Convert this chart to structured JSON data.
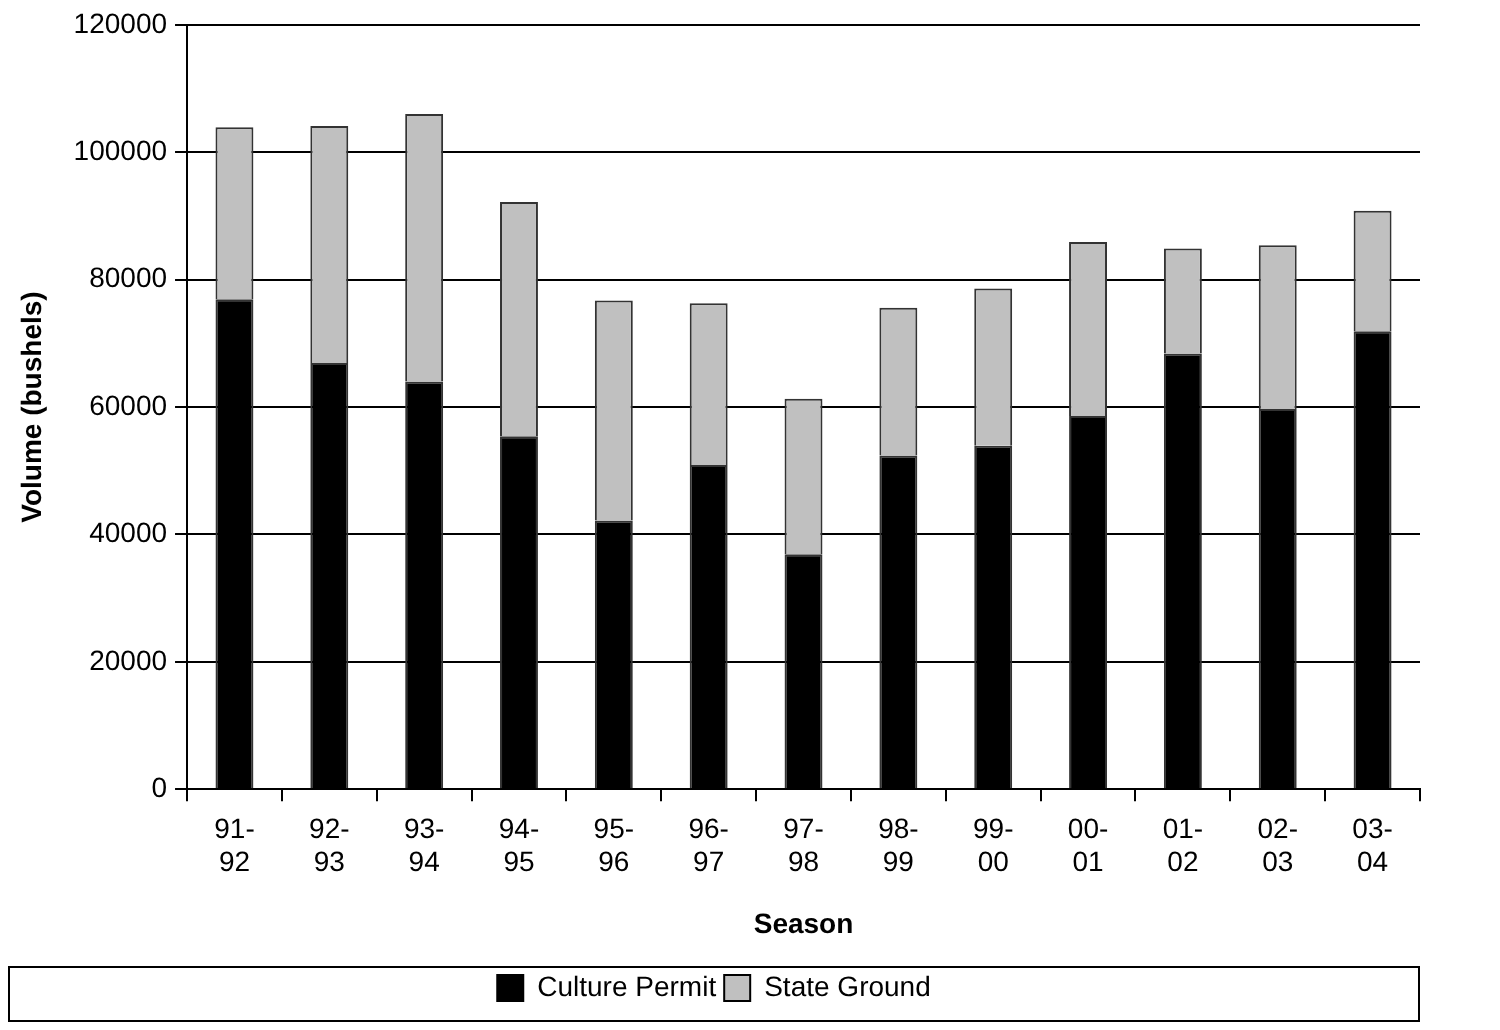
{
  "chart_data": {
    "type": "bar",
    "stacked": true,
    "xlabel": "Season",
    "ylabel": "Volume (bushels)",
    "categories": [
      "91-92",
      "92-93",
      "93-94",
      "94-95",
      "95-96",
      "96-97",
      "97-98",
      "98-99",
      "99-00",
      "00-01",
      "01-02",
      "02-03",
      "03-04"
    ],
    "series": [
      {
        "name": "Culture Permit",
        "color": "#000000",
        "values": [
          76900,
          66900,
          64000,
          55400,
          42200,
          50900,
          36900,
          52400,
          53900,
          58600,
          68400,
          59700,
          71900
        ]
      },
      {
        "name": "State Ground",
        "color": "#c0c0c0",
        "values": [
          27000,
          37200,
          42000,
          36800,
          34500,
          25400,
          24400,
          23200,
          24700,
          27300,
          16500,
          25700,
          18900
        ]
      }
    ],
    "ylim": [
      0,
      120000
    ],
    "yticks": [
      0,
      20000,
      40000,
      60000,
      80000,
      100000,
      120000
    ],
    "grid": "y",
    "legend": "bottom"
  }
}
